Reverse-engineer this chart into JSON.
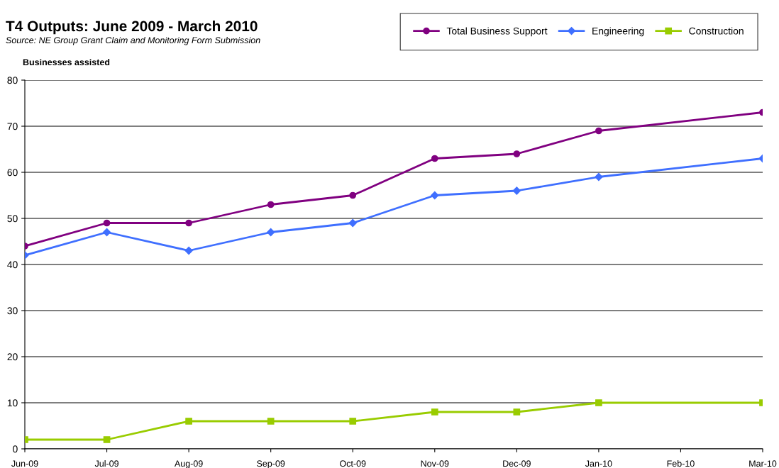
{
  "chart_data": {
    "type": "line",
    "title": "T4 Outputs: June 2009 - March 2010",
    "subtitle": "Source: NE Group Grant Claim and Monitoring Form Submission",
    "ylabel": "Businesses assisted",
    "categories": [
      "Jun-09",
      "Jul-09",
      "Aug-09",
      "Sep-09",
      "Oct-09",
      "Nov-09",
      "Dec-09",
      "Jan-10",
      "Feb-10",
      "Mar-10"
    ],
    "series": [
      {
        "name": "Total Business Support",
        "color": "#800080",
        "marker": "circle",
        "values": [
          44,
          49,
          49,
          53,
          55,
          63,
          64,
          69,
          null,
          73
        ]
      },
      {
        "name": "Engineering",
        "color": "#3f6fff",
        "marker": "diamond",
        "values": [
          42,
          47,
          43,
          47,
          49,
          55,
          56,
          59,
          null,
          63
        ]
      },
      {
        "name": "Construction",
        "color": "#99cc00",
        "marker": "square",
        "values": [
          2,
          2,
          6,
          6,
          6,
          8,
          8,
          10,
          null,
          10
        ]
      }
    ],
    "ylim": [
      0,
      80
    ],
    "yticks": [
      0,
      10,
      20,
      30,
      40,
      50,
      60,
      70,
      80
    ],
    "grid": "y",
    "legend": "top right",
    "line_style": "solid"
  }
}
